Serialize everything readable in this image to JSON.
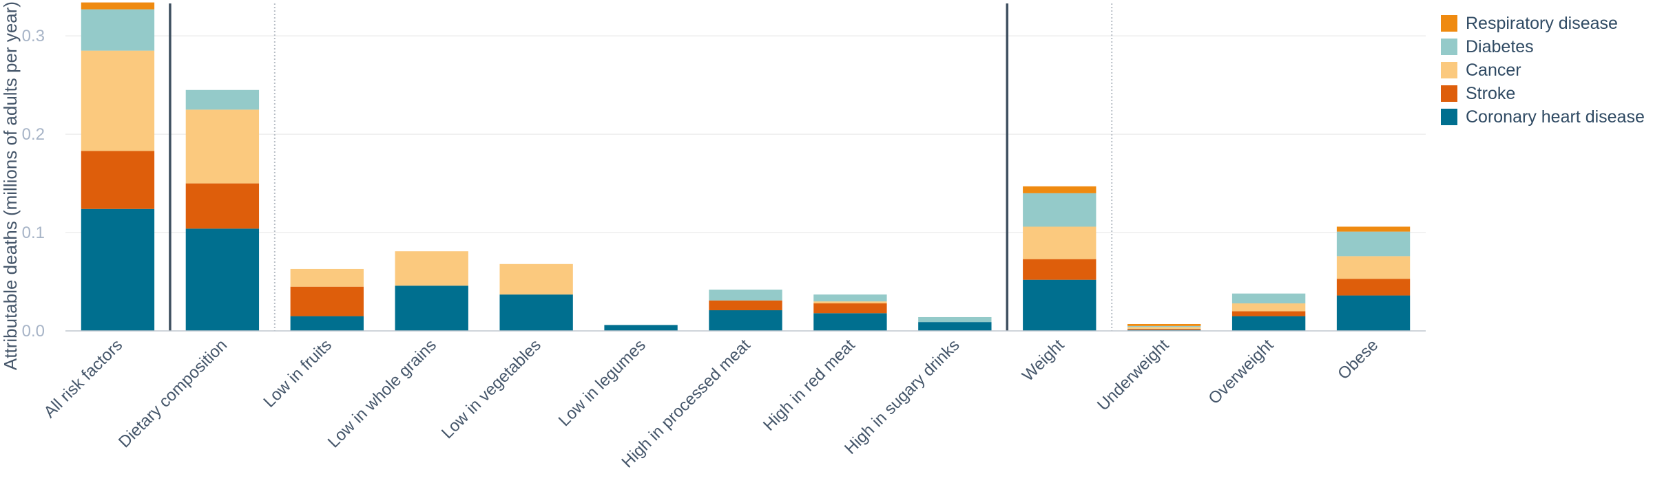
{
  "chart_data": {
    "type": "bar",
    "stacked": true,
    "ylabel": "Attributable deaths (millions of adults per year)",
    "ylim": [
      0,
      0.333
    ],
    "y_ticks": [
      {
        "value": 0,
        "label": "0.0"
      },
      {
        "value": 0.1,
        "label": "0.1"
      },
      {
        "value": 0.2,
        "label": "0.2"
      },
      {
        "value": 0.3,
        "label": "0.3"
      }
    ],
    "grid": true,
    "legend_position": "top-right",
    "categories": [
      "All risk factors",
      "Dietary composition",
      "Low in fruits",
      "Low in whole grains",
      "Low in vegetables",
      "Low in legumes",
      "High in processed meat",
      "High in red meat",
      "High in sugary drinks",
      "Weight",
      "Underweight",
      "Overweight",
      "Obese"
    ],
    "separators": [
      {
        "after_index": 0,
        "style": "solid"
      },
      {
        "after_index": 1,
        "style": "dotted"
      },
      {
        "after_index": 8,
        "style": "solid"
      },
      {
        "after_index": 9,
        "style": "dotted"
      }
    ],
    "series": [
      {
        "name": "Coronary heart disease",
        "color": "#006f8f",
        "values": [
          0.124,
          0.104,
          0.015,
          0.046,
          0.037,
          0.006,
          0.021,
          0.018,
          0.009,
          0.052,
          0.001,
          0.015,
          0.036
        ]
      },
      {
        "name": "Stroke",
        "color": "#de5e0b",
        "values": [
          0.059,
          0.046,
          0.03,
          0.0,
          0.0,
          0.0,
          0.01,
          0.01,
          0.0,
          0.021,
          0.001,
          0.005,
          0.017
        ]
      },
      {
        "name": "Cancer",
        "color": "#fbc97e",
        "values": [
          0.102,
          0.075,
          0.018,
          0.035,
          0.031,
          0.0,
          0.0,
          0.002,
          0.0,
          0.033,
          0.002,
          0.008,
          0.023
        ]
      },
      {
        "name": "Diabetes",
        "color": "#94cac9",
        "values": [
          0.042,
          0.02,
          0.0,
          0.0,
          0.0,
          0.0,
          0.011,
          0.007,
          0.005,
          0.034,
          0.001,
          0.01,
          0.025
        ]
      },
      {
        "name": "Respiratory disease",
        "color": "#ef8a10",
        "values": [
          0.007,
          0.0,
          0.0,
          0.0,
          0.0,
          0.0,
          0.0,
          0.0,
          0.0,
          0.007,
          0.002,
          0.0,
          0.005
        ]
      }
    ],
    "legend_order": [
      "Respiratory disease",
      "Diabetes",
      "Cancer",
      "Stroke",
      "Coronary heart disease"
    ]
  }
}
